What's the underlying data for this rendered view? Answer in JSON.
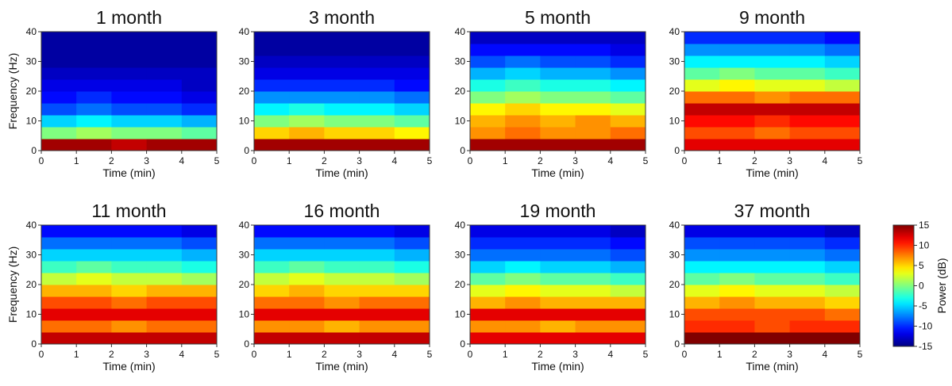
{
  "chart_data": [
    {
      "type": "heatmap",
      "title": "1 month",
      "xlabel": "Time (min)",
      "ylabel": "Frequency (Hz)",
      "colormap": "jet",
      "zlim": [
        -15,
        15
      ],
      "xlim": [
        0,
        5
      ],
      "xticks": [
        0,
        1,
        2,
        3,
        4,
        5
      ],
      "ylim": [
        0,
        40
      ],
      "yticks": [
        0,
        10,
        20,
        30,
        40
      ],
      "xbins": [
        0,
        1,
        2,
        3,
        4,
        5
      ],
      "ybins": [
        0,
        4,
        8,
        12,
        16,
        20,
        24,
        28,
        32,
        36,
        40
      ],
      "z": [
        [
          14,
          14,
          13,
          14,
          14
        ],
        [
          0,
          1,
          0,
          0,
          -1
        ],
        [
          -5,
          -4,
          -5,
          -5,
          -6
        ],
        [
          -9,
          -8,
          -9,
          -9,
          -10
        ],
        [
          -11,
          -10,
          -11,
          -11,
          -12
        ],
        [
          -12,
          -12,
          -12,
          -12,
          -13
        ],
        [
          -13,
          -13,
          -13,
          -13,
          -13
        ],
        [
          -14,
          -14,
          -14,
          -14,
          -14
        ],
        [
          -14,
          -14,
          -14,
          -14,
          -14
        ],
        [
          -14,
          -14,
          -14,
          -14,
          -14
        ]
      ]
    },
    {
      "type": "heatmap",
      "title": "3 month",
      "xlabel": "Time (min)",
      "colormap": "jet",
      "zlim": [
        -15,
        15
      ],
      "xlim": [
        0,
        5
      ],
      "xticks": [
        0,
        1,
        2,
        3,
        4,
        5
      ],
      "ylim": [
        0,
        40
      ],
      "yticks": [
        0,
        10,
        20,
        30,
        40
      ],
      "xbins": [
        0,
        1,
        2,
        3,
        4,
        5
      ],
      "ybins": [
        0,
        4,
        8,
        12,
        16,
        20,
        24,
        28,
        32,
        36,
        40
      ],
      "z": [
        [
          14,
          14,
          14,
          14,
          14
        ],
        [
          5,
          6,
          5,
          5,
          4
        ],
        [
          0,
          1,
          0,
          0,
          -1
        ],
        [
          -4,
          -3,
          -4,
          -4,
          -5
        ],
        [
          -7,
          -7,
          -7,
          -7,
          -8
        ],
        [
          -10,
          -10,
          -10,
          -10,
          -11
        ],
        [
          -12,
          -12,
          -12,
          -12,
          -12
        ],
        [
          -13,
          -13,
          -13,
          -13,
          -13
        ],
        [
          -14,
          -14,
          -14,
          -14,
          -14
        ],
        [
          -14,
          -14,
          -14,
          -14,
          -14
        ]
      ]
    },
    {
      "type": "heatmap",
      "title": "5 month",
      "xlabel": "Time (min)",
      "colormap": "jet",
      "zlim": [
        -15,
        15
      ],
      "xlim": [
        0,
        5
      ],
      "xticks": [
        0,
        1,
        2,
        3,
        4,
        5
      ],
      "ylim": [
        0,
        40
      ],
      "yticks": [
        0,
        10,
        20,
        30,
        40
      ],
      "xbins": [
        0,
        1,
        2,
        3,
        4,
        5
      ],
      "ybins": [
        0,
        4,
        8,
        12,
        16,
        20,
        24,
        28,
        32,
        36,
        40
      ],
      "z": [
        [
          14,
          14,
          14,
          14,
          14
        ],
        [
          7,
          8,
          7,
          7,
          8
        ],
        [
          6,
          7,
          6,
          7,
          6
        ],
        [
          4,
          5,
          4,
          4,
          3
        ],
        [
          0,
          1,
          0,
          0,
          -1
        ],
        [
          -3,
          -2,
          -3,
          -3,
          -4
        ],
        [
          -6,
          -5,
          -6,
          -6,
          -7
        ],
        [
          -9,
          -8,
          -9,
          -9,
          -10
        ],
        [
          -11,
          -11,
          -11,
          -11,
          -12
        ],
        [
          -13,
          -13,
          -13,
          -13,
          -13
        ]
      ]
    },
    {
      "type": "heatmap",
      "title": "9 month",
      "xlabel": "Time (min)",
      "colormap": "jet",
      "zlim": [
        -15,
        15
      ],
      "xlim": [
        0,
        5
      ],
      "xticks": [
        0,
        1,
        2,
        3,
        4,
        5
      ],
      "ylim": [
        0,
        40
      ],
      "yticks": [
        0,
        10,
        20,
        30,
        40
      ],
      "xbins": [
        0,
        1,
        2,
        3,
        4,
        5
      ],
      "ybins": [
        0,
        4,
        8,
        12,
        16,
        20,
        24,
        28,
        32,
        36,
        40
      ],
      "z": [
        [
          12,
          12,
          12,
          12,
          12
        ],
        [
          9,
          9,
          8,
          9,
          9
        ],
        [
          11,
          11,
          10,
          11,
          11
        ],
        [
          13,
          13,
          13,
          13,
          13
        ],
        [
          8,
          8,
          7,
          8,
          8
        ],
        [
          3,
          4,
          3,
          3,
          2
        ],
        [
          -1,
          0,
          -1,
          -1,
          -2
        ],
        [
          -4,
          -4,
          -4,
          -4,
          -5
        ],
        [
          -7,
          -7,
          -7,
          -7,
          -8
        ],
        [
          -10,
          -10,
          -10,
          -10,
          -11
        ]
      ]
    },
    {
      "type": "heatmap",
      "title": "11 month",
      "xlabel": "Time (min)",
      "ylabel": "Frequency (Hz)",
      "colormap": "jet",
      "zlim": [
        -15,
        15
      ],
      "xlim": [
        0,
        5
      ],
      "xticks": [
        0,
        1,
        2,
        3,
        4,
        5
      ],
      "ylim": [
        0,
        40
      ],
      "yticks": [
        0,
        10,
        20,
        30,
        40
      ],
      "xbins": [
        0,
        1,
        2,
        3,
        4,
        5
      ],
      "ybins": [
        0,
        4,
        8,
        12,
        16,
        20,
        24,
        28,
        32,
        36,
        40
      ],
      "z": [
        [
          13,
          13,
          13,
          13,
          13
        ],
        [
          8,
          8,
          7,
          8,
          8
        ],
        [
          12,
          12,
          12,
          12,
          12
        ],
        [
          9,
          9,
          8,
          9,
          9
        ],
        [
          6,
          6,
          5,
          6,
          6
        ],
        [
          2,
          3,
          2,
          2,
          1
        ],
        [
          -2,
          -1,
          -2,
          -2,
          -3
        ],
        [
          -5,
          -5,
          -5,
          -5,
          -6
        ],
        [
          -8,
          -8,
          -8,
          -8,
          -9
        ],
        [
          -11,
          -11,
          -11,
          -11,
          -12
        ]
      ]
    },
    {
      "type": "heatmap",
      "title": "16 month",
      "xlabel": "Time (min)",
      "colormap": "jet",
      "zlim": [
        -15,
        15
      ],
      "xlim": [
        0,
        5
      ],
      "xticks": [
        0,
        1,
        2,
        3,
        4,
        5
      ],
      "ylim": [
        0,
        40
      ],
      "yticks": [
        0,
        10,
        20,
        30,
        40
      ],
      "xbins": [
        0,
        1,
        2,
        3,
        4,
        5
      ],
      "ybins": [
        0,
        4,
        8,
        12,
        16,
        20,
        24,
        28,
        32,
        36,
        40
      ],
      "z": [
        [
          13,
          13,
          13,
          13,
          13
        ],
        [
          7,
          7,
          6,
          7,
          7
        ],
        [
          12,
          12,
          12,
          12,
          12
        ],
        [
          8,
          8,
          7,
          8,
          8
        ],
        [
          5,
          6,
          5,
          5,
          5
        ],
        [
          2,
          3,
          2,
          2,
          1
        ],
        [
          -2,
          -1,
          -2,
          -2,
          -3
        ],
        [
          -5,
          -5,
          -5,
          -5,
          -6
        ],
        [
          -8,
          -8,
          -8,
          -8,
          -9
        ],
        [
          -11,
          -11,
          -11,
          -11,
          -12
        ]
      ]
    },
    {
      "type": "heatmap",
      "title": "19 month",
      "xlabel": "Time (min)",
      "colormap": "jet",
      "zlim": [
        -15,
        15
      ],
      "xlim": [
        0,
        5
      ],
      "xticks": [
        0,
        1,
        2,
        3,
        4,
        5
      ],
      "ylim": [
        0,
        40
      ],
      "yticks": [
        0,
        10,
        20,
        30,
        40
      ],
      "xbins": [
        0,
        1,
        2,
        3,
        4,
        5
      ],
      "ybins": [
        0,
        4,
        8,
        12,
        16,
        20,
        24,
        28,
        32,
        36,
        40
      ],
      "z": [
        [
          12,
          12,
          12,
          12,
          12
        ],
        [
          7,
          7,
          6,
          7,
          7
        ],
        [
          12,
          12,
          12,
          12,
          12
        ],
        [
          6,
          7,
          6,
          6,
          6
        ],
        [
          3,
          4,
          3,
          3,
          2
        ],
        [
          -1,
          0,
          -1,
          -1,
          -2
        ],
        [
          -5,
          -4,
          -5,
          -5,
          -6
        ],
        [
          -8,
          -8,
          -8,
          -8,
          -9
        ],
        [
          -10,
          -10,
          -10,
          -10,
          -11
        ],
        [
          -12,
          -12,
          -12,
          -12,
          -13
        ]
      ]
    },
    {
      "type": "heatmap",
      "title": "37 month",
      "xlabel": "Time (min)",
      "colormap": "jet",
      "zlim": [
        -15,
        15
      ],
      "xlim": [
        0,
        5
      ],
      "xticks": [
        0,
        1,
        2,
        3,
        4,
        5
      ],
      "ylim": [
        0,
        40
      ],
      "yticks": [
        0,
        10,
        20,
        30,
        40
      ],
      "xbins": [
        0,
        1,
        2,
        3,
        4,
        5
      ],
      "ybins": [
        0,
        4,
        8,
        12,
        16,
        20,
        24,
        28,
        32,
        36,
        40
      ],
      "z": [
        [
          15,
          15,
          15,
          15,
          15
        ],
        [
          10,
          10,
          9,
          10,
          10
        ],
        [
          9,
          9,
          9,
          9,
          8
        ],
        [
          6,
          7,
          6,
          6,
          5
        ],
        [
          3,
          4,
          3,
          3,
          2
        ],
        [
          -1,
          0,
          -1,
          -1,
          -2
        ],
        [
          -4,
          -4,
          -4,
          -4,
          -5
        ],
        [
          -7,
          -7,
          -7,
          -7,
          -8
        ],
        [
          -9,
          -9,
          -9,
          -9,
          -10
        ],
        [
          -12,
          -12,
          -12,
          -12,
          -13
        ]
      ]
    },
    {
      "type": "colorbar",
      "label": "Power (dB)",
      "colormap": "jet",
      "zlim": [
        -15,
        15
      ],
      "zticks": [
        -15,
        -10,
        -5,
        0,
        5,
        10,
        15
      ]
    }
  ]
}
